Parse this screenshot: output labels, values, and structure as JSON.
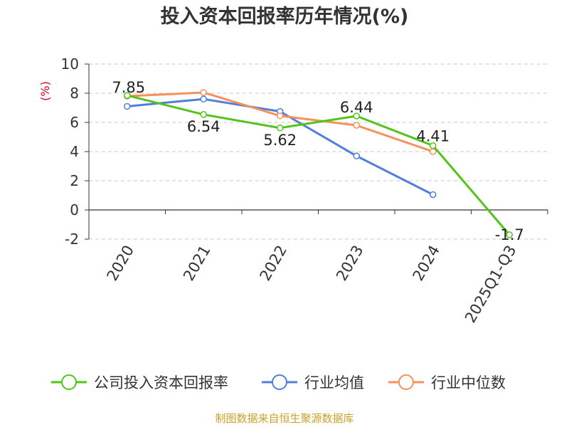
{
  "chart_data": {
    "type": "line",
    "title": "投入资本回报率历年情况(%)",
    "ylabel": "(%)",
    "xlabel": "",
    "categories": [
      "2020",
      "2021",
      "2022",
      "2023",
      "2024",
      "2025Q1-Q3"
    ],
    "ylim": [
      -2,
      10
    ],
    "yticks": [
      -2,
      0,
      2,
      4,
      6,
      8,
      10
    ],
    "grid": true,
    "legend_position": "bottom",
    "series": [
      {
        "name": "公司投入资本回报率",
        "color": "#52c41a",
        "values": [
          7.85,
          6.54,
          5.62,
          6.44,
          4.41,
          -1.7
        ],
        "data_labels": [
          "7.85",
          "6.54",
          "5.62",
          "6.44",
          "4.41",
          "-1.7"
        ]
      },
      {
        "name": "行业均值",
        "color": "#4f7fdb",
        "values": [
          7.1,
          7.6,
          6.75,
          3.7,
          1.05,
          null
        ]
      },
      {
        "name": "行业中位数",
        "color": "#f7905a",
        "values": [
          7.8,
          8.05,
          6.45,
          5.8,
          4.0,
          null
        ]
      }
    ]
  },
  "footer": {
    "source": "制图数据来自恒生聚源数据库"
  }
}
